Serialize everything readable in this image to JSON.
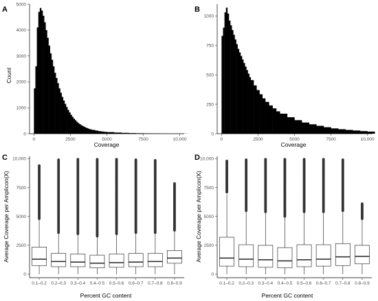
{
  "chart_data": [
    {
      "panel": "A",
      "type": "histogram",
      "xlabel": "Coverage",
      "ylabel": "Count",
      "xlim": [
        -300,
        10300
      ],
      "ylim": [
        0,
        5000
      ],
      "xticks": [
        0,
        2500,
        5000,
        7500,
        10000
      ],
      "xtick_labels": [
        "0",
        "2500",
        "5000",
        "7500",
        "10,000"
      ],
      "yticks": [
        0,
        1000,
        2000,
        3000,
        4000,
        5000
      ],
      "ytick_labels": [
        "0",
        "1000",
        "2000",
        "3000",
        "4000",
        "5000"
      ],
      "bars": {
        "x": [
          0,
          100,
          200,
          300,
          400,
          500,
          600,
          700,
          800,
          900,
          1000,
          1100,
          1200,
          1300,
          1400,
          1500,
          1600,
          1700,
          1800,
          1900,
          2000,
          2100,
          2200,
          2300,
          2400,
          2500,
          2600,
          2700,
          2800,
          2900,
          3000,
          3100,
          3200,
          3300,
          3400,
          3500,
          3600,
          3700,
          3800,
          3900,
          4000,
          4200,
          4400,
          4600,
          4800,
          5000,
          5500,
          6000,
          6500,
          7000,
          7500,
          8000,
          8500,
          9000,
          9500,
          10000
        ],
        "y": [
          1750,
          2600,
          4100,
          4700,
          4850,
          4750,
          4550,
          4300,
          4000,
          3700,
          3400,
          3100,
          2850,
          2600,
          2350,
          2150,
          1950,
          1750,
          1580,
          1420,
          1280,
          1150,
          1030,
          920,
          820,
          730,
          650,
          580,
          520,
          460,
          410,
          370,
          330,
          300,
          270,
          240,
          215,
          195,
          175,
          160,
          145,
          120,
          100,
          85,
          72,
          62,
          45,
          33,
          25,
          19,
          15,
          12,
          9,
          7,
          6,
          5
        ]
      }
    },
    {
      "panel": "B",
      "type": "histogram",
      "xlabel": "Coverage",
      "ylabel": "",
      "xlim": [
        -300,
        10300
      ],
      "ylim": [
        0,
        1100
      ],
      "xticks": [
        0,
        2500,
        5000,
        7500,
        10000
      ],
      "xtick_labels": [
        "0",
        "2500",
        "5000",
        "7500",
        "10,000"
      ],
      "yticks": [
        0,
        250,
        500,
        750,
        1000
      ],
      "ytick_labels": [
        "0",
        "250",
        "500",
        "750",
        "1000"
      ],
      "bars": {
        "x": [
          0,
          100,
          200,
          300,
          400,
          500,
          600,
          700,
          800,
          900,
          1000,
          1100,
          1200,
          1300,
          1400,
          1500,
          1600,
          1700,
          1800,
          1900,
          2000,
          2200,
          2400,
          2600,
          2800,
          3000,
          3250,
          3500,
          3750,
          4000,
          4500,
          5000,
          5500,
          6000,
          6500,
          7000,
          7500,
          8000,
          8500,
          9000,
          9500,
          10000
        ],
        "y": [
          830,
          900,
          1030,
          1070,
          1020,
          960,
          920,
          880,
          840,
          800,
          760,
          720,
          690,
          660,
          630,
          600,
          570,
          540,
          510,
          480,
          455,
          410,
          370,
          335,
          300,
          270,
          240,
          215,
          190,
          170,
          140,
          115,
          95,
          80,
          67,
          55,
          45,
          38,
          32,
          27,
          22,
          18
        ]
      }
    },
    {
      "panel": "C",
      "type": "box",
      "xlabel": "Percent GC content",
      "ylabel": "Average Coverage per Amplicon(X)",
      "ylim": [
        -300,
        10200
      ],
      "yticks": [
        0,
        2500,
        5000,
        7500,
        10000
      ],
      "ytick_labels": [
        "0",
        "2500",
        "5000",
        "7500",
        "10,000"
      ],
      "categories": [
        "0.1–0.2",
        "0.2–0.3",
        "0.3–0.4",
        "0.4–0.5",
        "0.5–0.6",
        "0.6–0.7",
        "0.7–0.8",
        "0.8–0.9"
      ],
      "boxes": [
        {
          "q1": 750,
          "median": 1300,
          "q3": 2350,
          "whisker_low": 0,
          "whisker_high": 4700,
          "outlier_low": 4800,
          "outlier_high": 9400
        },
        {
          "q1": 650,
          "median": 1100,
          "q3": 1800,
          "whisker_low": 0,
          "whisker_high": 3500,
          "outlier_low": 3600,
          "outlier_high": 9900
        },
        {
          "q1": 650,
          "median": 1050,
          "q3": 1750,
          "whisker_low": 0,
          "whisker_high": 3400,
          "outlier_low": 3500,
          "outlier_high": 9950
        },
        {
          "q1": 550,
          "median": 950,
          "q3": 1650,
          "whisker_low": 0,
          "whisker_high": 3200,
          "outlier_low": 3300,
          "outlier_high": 9950
        },
        {
          "q1": 600,
          "median": 1000,
          "q3": 1750,
          "whisker_low": 0,
          "whisker_high": 3400,
          "outlier_low": 3500,
          "outlier_high": 9950
        },
        {
          "q1": 650,
          "median": 1050,
          "q3": 1800,
          "whisker_low": 0,
          "whisker_high": 3500,
          "outlier_low": 3600,
          "outlier_high": 9900
        },
        {
          "q1": 650,
          "median": 1100,
          "q3": 1800,
          "whisker_low": 0,
          "whisker_high": 3500,
          "outlier_low": 3600,
          "outlier_high": 9850
        },
        {
          "q1": 950,
          "median": 1400,
          "q3": 2050,
          "whisker_low": 0,
          "whisker_high": 3700,
          "outlier_low": 3800,
          "outlier_high": 7850
        }
      ]
    },
    {
      "panel": "D",
      "type": "box",
      "xlabel": "Percent GC content",
      "ylabel": "Average Coverage per Amplicon(X)",
      "ylim": [
        -300,
        10200
      ],
      "yticks": [
        0,
        2500,
        5000,
        7500,
        10000
      ],
      "ytick_labels": [
        "0",
        "2500",
        "5000",
        "7500",
        "10,000"
      ],
      "categories": [
        "0.1–0.2",
        "0.2–0.3",
        "0.3–0.4",
        "0.4–0.5",
        "0.5–0.6",
        "0.6–0.7",
        "0.7–0.8",
        "0.8–0.9"
      ],
      "boxes": [
        {
          "q1": 700,
          "median": 1400,
          "q3": 3200,
          "whisker_low": 0,
          "whisker_high": 6900,
          "outlier_low": 7100,
          "outlier_high": 9800
        },
        {
          "q1": 650,
          "median": 1300,
          "q3": 2550,
          "whisker_low": 0,
          "whisker_high": 5400,
          "outlier_low": 5500,
          "outlier_high": 9900
        },
        {
          "q1": 600,
          "median": 1250,
          "q3": 2500,
          "whisker_low": 0,
          "whisker_high": 5300,
          "outlier_low": 5400,
          "outlier_high": 9950
        },
        {
          "q1": 550,
          "median": 1150,
          "q3": 2300,
          "whisker_low": 0,
          "whisker_high": 4900,
          "outlier_low": 5000,
          "outlier_high": 9950
        },
        {
          "q1": 650,
          "median": 1250,
          "q3": 2550,
          "whisker_low": 0,
          "whisker_high": 5300,
          "outlier_low": 5400,
          "outlier_high": 9950
        },
        {
          "q1": 700,
          "median": 1300,
          "q3": 2550,
          "whisker_low": 0,
          "whisker_high": 5300,
          "outlier_low": 5400,
          "outlier_high": 9950
        },
        {
          "q1": 750,
          "median": 1500,
          "q3": 2650,
          "whisker_low": 0,
          "whisker_high": 5400,
          "outlier_low": 5500,
          "outlier_high": 9900
        },
        {
          "q1": 900,
          "median": 1550,
          "q3": 2500,
          "whisker_low": 0,
          "whisker_high": 4700,
          "outlier_low": 4800,
          "outlier_high": 6100
        }
      ]
    }
  ]
}
